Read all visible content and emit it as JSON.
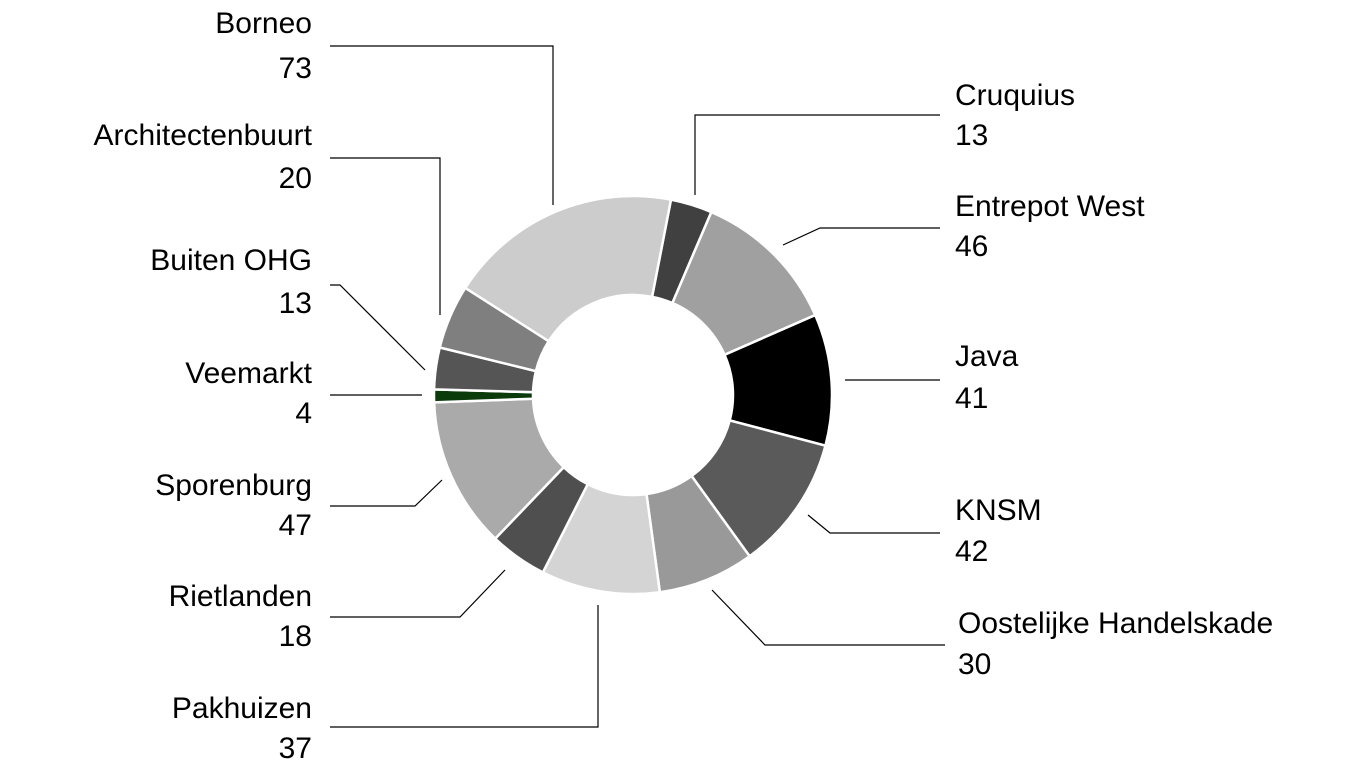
{
  "chart_data": {
    "type": "donut",
    "categories": [
      "Cruquius",
      "Entrepot West",
      "Java",
      "KNSM",
      "Oostelijke Handelskade",
      "Pakhuizen",
      "Rietlanden",
      "Sporenburg",
      "Veemarkt",
      "Buiten OHG",
      "Architectenbuurt",
      "Borneo"
    ],
    "values": [
      13,
      46,
      41,
      42,
      30,
      37,
      18,
      47,
      4,
      13,
      20,
      73
    ],
    "colors": [
      "#404040",
      "#a0a0a0",
      "#000000",
      "#5a5a5a",
      "#999999",
      "#d4d4d4",
      "#4f4f4f",
      "#aaaaaa",
      "#0b3a0b",
      "#555555",
      "#7f7f7f",
      "#cccccc"
    ]
  }
}
